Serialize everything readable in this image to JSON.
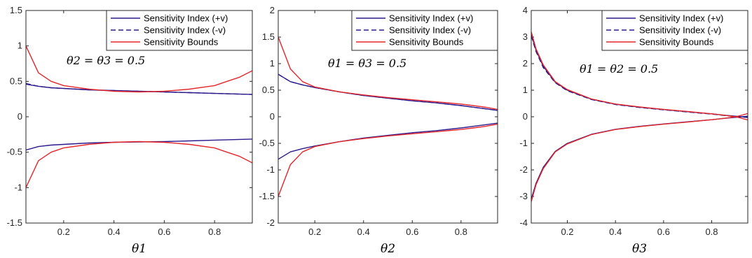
{
  "chart_data": [
    {
      "type": "line",
      "xlabel": "θ1",
      "annotation": "θ2 = θ3 = 0.5",
      "xlim": [
        0.05,
        0.95
      ],
      "ylim": [
        -1.5,
        1.5
      ],
      "xticks": [
        "0.2",
        "0.4",
        "0.6",
        "0.8"
      ],
      "yticks": [
        "-1.5",
        "-1",
        "-0.5",
        "0",
        "0.5",
        "1",
        "1.5"
      ],
      "legend_position": "top-right",
      "x": [
        0.05,
        0.1,
        0.15,
        0.2,
        0.3,
        0.4,
        0.5,
        0.6,
        0.7,
        0.8,
        0.85,
        0.9,
        0.95
      ],
      "series": [
        {
          "name": "Sensitivity Index (+v)",
          "color": "#2b1a8c",
          "dash": "solid",
          "values": [
            0.46,
            0.43,
            0.41,
            0.4,
            0.38,
            0.37,
            0.36,
            0.35,
            0.34,
            0.33,
            0.325,
            0.32,
            0.315
          ]
        },
        {
          "name": "Sensitivity Index (+v)",
          "color": "#2b1a8c",
          "dash": "solid",
          "legend": false,
          "values": [
            -0.47,
            -0.42,
            -0.4,
            -0.39,
            -0.37,
            -0.36,
            -0.355,
            -0.35,
            -0.34,
            -0.33,
            -0.325,
            -0.32,
            -0.315
          ]
        },
        {
          "name": "Sensitivity Index (-v)",
          "color": "#2b1a8c",
          "dash": "dashed",
          "values": [
            0.47,
            0.43,
            0.41,
            0.4,
            0.38,
            0.37,
            0.36,
            0.35,
            0.34,
            0.33,
            0.325,
            0.32,
            0.315
          ]
        },
        {
          "name": "Sensitivity Bounds",
          "color": "#e4262b",
          "dash": "solid",
          "values": [
            1.0,
            0.62,
            0.5,
            0.44,
            0.39,
            0.36,
            0.35,
            0.36,
            0.39,
            0.44,
            0.5,
            0.56,
            0.65
          ]
        },
        {
          "name": "Sensitivity Bounds",
          "color": "#e4262b",
          "dash": "solid",
          "legend": false,
          "values": [
            -1.0,
            -0.62,
            -0.5,
            -0.44,
            -0.39,
            -0.36,
            -0.35,
            -0.36,
            -0.39,
            -0.44,
            -0.5,
            -0.56,
            -0.65
          ]
        }
      ]
    },
    {
      "type": "line",
      "xlabel": "θ2",
      "annotation": "θ1 = θ3 = 0.5",
      "xlim": [
        0.05,
        0.95
      ],
      "ylim": [
        -2,
        2
      ],
      "xticks": [
        "0.2",
        "0.4",
        "0.6",
        "0.8"
      ],
      "yticks": [
        "-2",
        "-1.5",
        "-1",
        "-0.5",
        "0",
        "0.5",
        "1",
        "1.5",
        "2"
      ],
      "legend_position": "top-right",
      "x": [
        0.05,
        0.1,
        0.15,
        0.2,
        0.3,
        0.4,
        0.5,
        0.6,
        0.7,
        0.8,
        0.85,
        0.9,
        0.95
      ],
      "series": [
        {
          "name": "Sensitivity Index (+v)",
          "color": "#2b1a8c",
          "dash": "solid",
          "values": [
            0.8,
            0.66,
            0.6,
            0.55,
            0.47,
            0.4,
            0.35,
            0.3,
            0.26,
            0.21,
            0.18,
            0.15,
            0.12
          ]
        },
        {
          "name": "Sensitivity Index (+v)",
          "color": "#2b1a8c",
          "dash": "solid",
          "legend": false,
          "values": [
            -0.8,
            -0.66,
            -0.6,
            -0.55,
            -0.47,
            -0.4,
            -0.35,
            -0.3,
            -0.26,
            -0.21,
            -0.18,
            -0.15,
            -0.12
          ]
        },
        {
          "name": "Sensitivity Index (-v)",
          "color": "#2b1a8c",
          "dash": "dashed",
          "values": [
            0.8,
            0.66,
            0.6,
            0.55,
            0.47,
            0.4,
            0.35,
            0.3,
            0.26,
            0.21,
            0.18,
            0.15,
            0.12
          ]
        },
        {
          "name": "Sensitivity Bounds",
          "color": "#e4262b",
          "dash": "solid",
          "values": [
            1.5,
            0.9,
            0.66,
            0.56,
            0.47,
            0.41,
            0.36,
            0.32,
            0.28,
            0.24,
            0.21,
            0.18,
            0.14
          ]
        },
        {
          "name": "Sensitivity Bounds",
          "color": "#e4262b",
          "dash": "solid",
          "legend": false,
          "values": [
            -1.5,
            -0.9,
            -0.66,
            -0.56,
            -0.47,
            -0.41,
            -0.36,
            -0.32,
            -0.28,
            -0.24,
            -0.21,
            -0.18,
            -0.14
          ]
        }
      ]
    },
    {
      "type": "line",
      "xlabel": "θ3",
      "annotation": "θ1 = θ2 = 0.5",
      "xlim": [
        0.05,
        0.95
      ],
      "ylim": [
        -4,
        4
      ],
      "xticks": [
        "0.2",
        "0.4",
        "0.6",
        "0.8"
      ],
      "yticks": [
        "-4",
        "-3",
        "-2",
        "-1",
        "0",
        "1",
        "2",
        "3",
        "4"
      ],
      "legend_position": "top-right",
      "x": [
        0.05,
        0.07,
        0.1,
        0.15,
        0.2,
        0.3,
        0.4,
        0.5,
        0.6,
        0.7,
        0.8,
        0.85,
        0.9,
        0.95
      ],
      "series": [
        {
          "name": "Sensitivity Index (+v)",
          "color": "#2b1a8c",
          "dash": "solid",
          "values": [
            3.1,
            2.5,
            1.9,
            1.3,
            1.0,
            0.66,
            0.47,
            0.36,
            0.27,
            0.19,
            0.11,
            0.06,
            0.02,
            -0.02
          ]
        },
        {
          "name": "Sensitivity Index (+v)",
          "color": "#2b1a8c",
          "dash": "solid",
          "legend": false,
          "values": [
            -3.1,
            -2.5,
            -1.9,
            -1.3,
            -1.0,
            -0.66,
            -0.47,
            -0.36,
            -0.27,
            -0.19,
            -0.11,
            -0.06,
            -0.02,
            0.02
          ]
        },
        {
          "name": "Sensitivity Index (-v)",
          "color": "#2b1a8c",
          "dash": "dashed",
          "values": [
            3.05,
            2.45,
            1.85,
            1.28,
            0.98,
            0.65,
            0.46,
            0.35,
            0.26,
            0.18,
            0.1,
            0.05,
            0.01,
            -0.03
          ]
        },
        {
          "name": "Sensitivity Bounds",
          "color": "#e4262b",
          "dash": "solid",
          "values": [
            3.2,
            2.55,
            1.95,
            1.32,
            1.02,
            0.67,
            0.48,
            0.37,
            0.28,
            0.2,
            0.11,
            0.06,
            0.0,
            -0.12
          ]
        },
        {
          "name": "Sensitivity Bounds",
          "color": "#e4262b",
          "dash": "solid",
          "legend": false,
          "values": [
            -3.2,
            -2.55,
            -1.95,
            -1.32,
            -1.02,
            -0.67,
            -0.48,
            -0.37,
            -0.28,
            -0.2,
            -0.11,
            -0.06,
            0.0,
            0.12
          ]
        }
      ]
    }
  ]
}
